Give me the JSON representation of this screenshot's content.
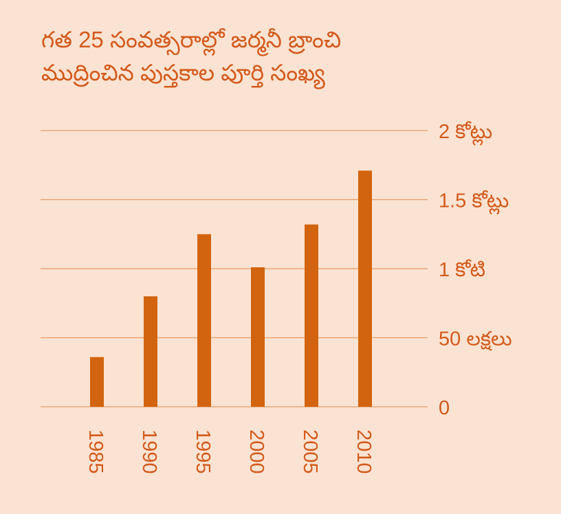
{
  "chart_data": {
    "type": "bar",
    "title": [
      "గత 25 సంవత్సరాల్లో జర్మనీ బ్రాంచి",
      "ముద్రించిన పుస్తకాల పూర్తి సంఖ్య"
    ],
    "categories": [
      "1985",
      "1990",
      "1995",
      "2000",
      "2005",
      "2010"
    ],
    "values": [
      0.36,
      0.8,
      1.25,
      1.01,
      1.32,
      1.71
    ],
    "value_unit": "crore",
    "ylim": [
      0,
      2
    ],
    "yticks": [
      0,
      0.5,
      1,
      1.5,
      2
    ],
    "ytick_labels": [
      "0",
      "50 లక్షలు",
      "1 కోటి",
      "1.5 కోట్లు",
      "2 కోట్లు"
    ],
    "yaxis_position": "right",
    "grid": true,
    "xlabel": "",
    "ylabel": "",
    "colors": {
      "bar": "#d2640f",
      "text": "#d35a1c",
      "grid": "#e89a66",
      "background": "#fae3d2"
    }
  }
}
